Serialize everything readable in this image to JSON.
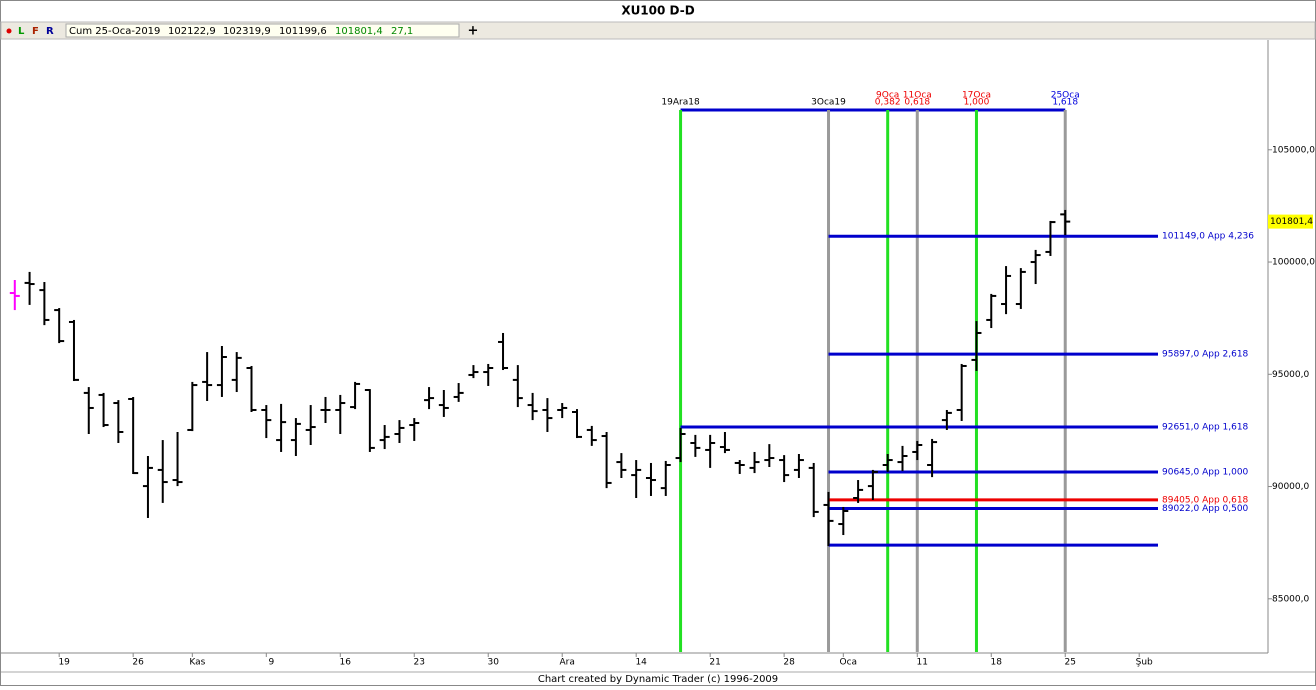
{
  "header": {
    "title": "XU100 D-D",
    "buttons": [
      "L",
      "F",
      "R"
    ],
    "date": "Cum 25-Oca-2019",
    "open": "102122,9",
    "high": "102319,9",
    "low": "101199,6",
    "close": "101801,4",
    "change": "27,1",
    "add": "+"
  },
  "footer": "Chart created by Dynamic Trader  (c) 1996-2009",
  "chart_data": {
    "type": "ohlc",
    "color": "#000000",
    "first_bar_color": "#ff00ff",
    "open": [
      98620,
      99070,
      98750,
      97860,
      97330,
      94170,
      94080,
      93720,
      93900,
      90020,
      90740,
      90290,
      92520,
      94660,
      94520,
      94750,
      95280,
      93410,
      92070,
      92070,
      92520,
      93410,
      93410,
      93540,
      94300,
      92070,
      92340,
      92740,
      93850,
      93630,
      93990,
      94970,
      95100,
      96440,
      94750,
      93630,
      93410,
      93410,
      93320,
      92520,
      92250,
      91090,
      90510,
      90380,
      89930,
      91270,
      91940,
      91630,
      91760,
      91050,
      90830,
      91180,
      91180,
      90740,
      90830,
      89180,
      88330,
      89490,
      90020,
      90960,
      91090,
      91540,
      90960,
      92960,
      93410,
      95640,
      97420,
      98130,
      98130,
      100000,
      100450,
      102122.9
    ],
    "high": [
      99200,
      99560,
      99110,
      97950,
      97420,
      94430,
      94170,
      93850,
      93990,
      91360,
      92070,
      92430,
      94660,
      95990,
      96260,
      95990,
      95370,
      93630,
      93680,
      93050,
      93630,
      93990,
      94080,
      94660,
      94340,
      92740,
      92960,
      93050,
      94430,
      94300,
      94610,
      95410,
      95460,
      96840,
      95410,
      94170,
      93940,
      93720,
      93450,
      92700,
      92430,
      91490,
      91180,
      91050,
      91140,
      92610,
      92300,
      92300,
      92430,
      91180,
      91540,
      91890,
      91400,
      91450,
      91050,
      89760,
      89090,
      90290,
      90740,
      91450,
      91810,
      92030,
      92120,
      93410,
      95460,
      97370,
      98580,
      99820,
      99730,
      100540,
      101830,
      102319.9
    ],
    "low": [
      97860,
      98090,
      97190,
      96390,
      94700,
      92340,
      92650,
      91940,
      90560,
      88600,
      89270,
      90020,
      92470,
      93810,
      93990,
      94210,
      93320,
      92160,
      91540,
      91360,
      91850,
      92830,
      92340,
      93450,
      91540,
      91670,
      91940,
      92030,
      93450,
      93100,
      93770,
      94830,
      94480,
      95190,
      93540,
      92960,
      92430,
      93050,
      92160,
      91810,
      89930,
      90380,
      89490,
      89580,
      89580,
      91090,
      91320,
      90830,
      91490,
      90560,
      90600,
      90870,
      90200,
      90380,
      88640,
      87350,
      87840,
      89270,
      89400,
      90650,
      90690,
      91180,
      90420,
      92520,
      92920,
      95150,
      97060,
      97680,
      97910,
      99020,
      100270,
      101199.6
    ],
    "close": [
      98490,
      99020,
      97420,
      96480,
      94750,
      93500,
      92740,
      92430,
      90600,
      90830,
      90200,
      90200,
      94520,
      94520,
      95770,
      95730,
      93410,
      92960,
      92870,
      92790,
      92650,
      93410,
      93720,
      94570,
      91720,
      92210,
      92610,
      92830,
      93940,
      93500,
      94170,
      95100,
      95280,
      95280,
      93940,
      93360,
      93050,
      93500,
      92210,
      92070,
      90160,
      90740,
      90740,
      90290,
      90960,
      92340,
      91720,
      91940,
      91630,
      90960,
      91090,
      91270,
      90510,
      91180,
      88870,
      88470,
      88910,
      89850,
      90650,
      91180,
      91360,
      91850,
      91980,
      93280,
      95370,
      96840,
      98490,
      99380,
      99560,
      100310,
      101780,
      101801.4
    ],
    "last_price": {
      "value": 101801.4,
      "label": "101801,4"
    },
    "xlim": [
      -1,
      77
    ],
    "ylim": [
      82630,
      109890
    ],
    "xticks": [
      {
        "value": 3,
        "label": "19"
      },
      {
        "value": 8,
        "label": "26"
      },
      {
        "value": 12,
        "label": "Kas"
      },
      {
        "value": 17,
        "label": "9"
      },
      {
        "value": 22,
        "label": "16"
      },
      {
        "value": 27,
        "label": "23"
      },
      {
        "value": 32,
        "label": "30"
      },
      {
        "value": 37,
        "label": "Ara"
      },
      {
        "value": 42,
        "label": "14"
      },
      {
        "value": 47,
        "label": "21"
      },
      {
        "value": 52,
        "label": "28"
      },
      {
        "value": 56,
        "label": "Oca"
      },
      {
        "value": 61,
        "label": "11"
      },
      {
        "value": 66,
        "label": "18"
      },
      {
        "value": 71,
        "label": "25"
      },
      {
        "value": 76,
        "label": "Şub"
      }
    ],
    "yticks": [
      {
        "value": 85000,
        "label": "85000,0"
      },
      {
        "value": 90000,
        "label": "90000,0"
      },
      {
        "value": 95000,
        "label": "95000,0"
      },
      {
        "value": 100000,
        "label": "100000,0"
      },
      {
        "value": 105000,
        "label": "105000,0"
      }
    ],
    "time_annotations": [
      {
        "x": 45,
        "labels": [
          "19Ara18"
        ],
        "color": "#22e022",
        "label_color": "#000000"
      },
      {
        "x": 55,
        "labels": [
          "3Oca19"
        ],
        "color": "#9a9a9a",
        "label_color": "#000000"
      },
      {
        "x": 59,
        "labels": [
          "9Oca",
          "0,382"
        ],
        "color": "#22e022",
        "label_color": "#ee0000"
      },
      {
        "x": 61,
        "labels": [
          "11Oca",
          "0,618"
        ],
        "color": "#9a9a9a",
        "label_color": "#ee0000"
      },
      {
        "x": 65,
        "labels": [
          "17Oca",
          "1,000"
        ],
        "color": "#22e022",
        "label_color": "#ee0000"
      },
      {
        "x": 71,
        "labels": [
          "25Oca",
          "1,618"
        ],
        "color": "#9a9a9a",
        "label_color": "#0000dd"
      }
    ],
    "levels": [
      {
        "value": 101149,
        "label": "101149,0 App 4,236",
        "color": "#0000cc",
        "from": 55
      },
      {
        "value": 95897,
        "label": "95897,0 App 2,618",
        "color": "#0000cc",
        "from": 55
      },
      {
        "value": 92651,
        "label": "92651,0 App 1,618",
        "color": "#0000cc",
        "from": 45
      },
      {
        "value": 90645,
        "label": "90645,0 App 1,000",
        "color": "#0000cc",
        "from": 55
      },
      {
        "value": 89405,
        "label": "89405,0 App 0,618",
        "color": "#ee0000",
        "from": 55
      },
      {
        "value": 89022,
        "label": "89022,0 App 0,500",
        "color": "#0000cc",
        "from": 55
      },
      {
        "value": 87390,
        "color": "#0000cc",
        "from": 55
      }
    ]
  }
}
